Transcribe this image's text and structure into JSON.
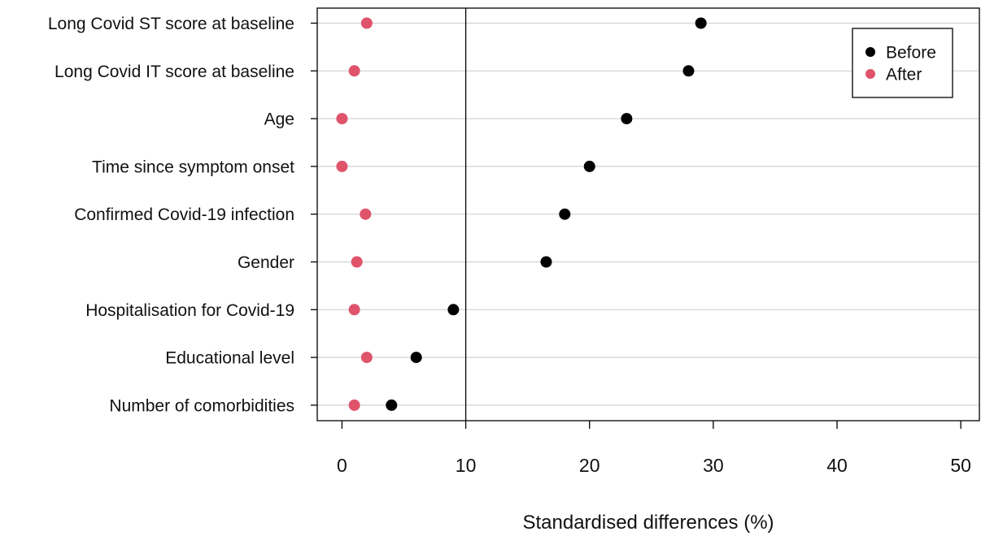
{
  "chart_data": {
    "type": "scatter",
    "title": "",
    "xlabel": "Standardised differences (%)",
    "ylabel": "",
    "xlim": [
      -2,
      51.5
    ],
    "xticks": [
      0,
      10,
      20,
      30,
      40,
      50
    ],
    "reference_line_x": 10,
    "grid": "horizontal",
    "legend_position": "top-right",
    "categories": [
      "Long Covid ST score at baseline",
      "Long Covid IT score at baseline",
      "Age",
      "Time since symptom onset",
      "Confirmed Covid-19 infection",
      "Gender",
      "Hospitalisation for Covid-19",
      "Educational level",
      "Number of comorbidities"
    ],
    "series": [
      {
        "name": "Before",
        "color": "#000000",
        "values": [
          29,
          28,
          23,
          20,
          18,
          16.5,
          9,
          6,
          4
        ]
      },
      {
        "name": "After",
        "color": "#df536b",
        "values": [
          2,
          1,
          0,
          0,
          1.9,
          1.2,
          1,
          2,
          1
        ]
      }
    ]
  }
}
